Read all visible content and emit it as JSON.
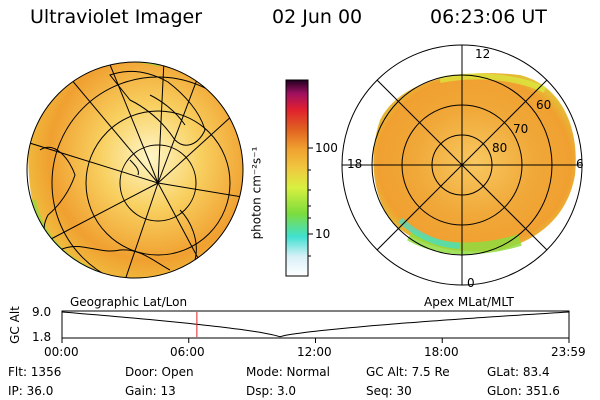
{
  "header": {
    "instrument": "Ultraviolet Imager",
    "date": "02 Jun 00",
    "time": "06:23:06 UT"
  },
  "left_panel": {
    "label": "Geographic Lat/Lon"
  },
  "right_panel": {
    "label": "Apex MLat/MLT",
    "lat_labels": [
      "60",
      "70",
      "80"
    ],
    "mlt_labels": [
      "12",
      "18",
      "6",
      "0"
    ]
  },
  "colorbar": {
    "unit_label": "photon cm⁻²s⁻¹",
    "tick_labels": [
      "100",
      "10"
    ],
    "colors": [
      "#ffffff",
      "#d8f0f8",
      "#40e0d0",
      "#7ddc3c",
      "#d8f040",
      "#f0c840",
      "#f0a030",
      "#e06020",
      "#e02030",
      "#a01060",
      "#200020"
    ]
  },
  "altitude_plot": {
    "ylabel": "GC Alt",
    "y_ticks": [
      "9.0",
      "1.8"
    ],
    "x_ticks": [
      "00:00",
      "06:00",
      "12:00",
      "18:00",
      "23:59"
    ],
    "marker_time_hours": 6.385
  },
  "info": {
    "rows": [
      [
        "Flt: 1356",
        "Door: Open",
        "Mode: Normal",
        "GC Alt: 7.5 Re",
        "GLat: 83.4"
      ],
      [
        "IP: 36.0",
        "Gain: 13",
        "Dsp: 3.0",
        "Seq: 30",
        "GLon: 351.6"
      ]
    ]
  },
  "colors": {
    "aurora_orange": "#f0a030",
    "aurora_yellow": "#f0d040",
    "aurora_green": "#90dc40",
    "marker_red": "#e02020"
  }
}
